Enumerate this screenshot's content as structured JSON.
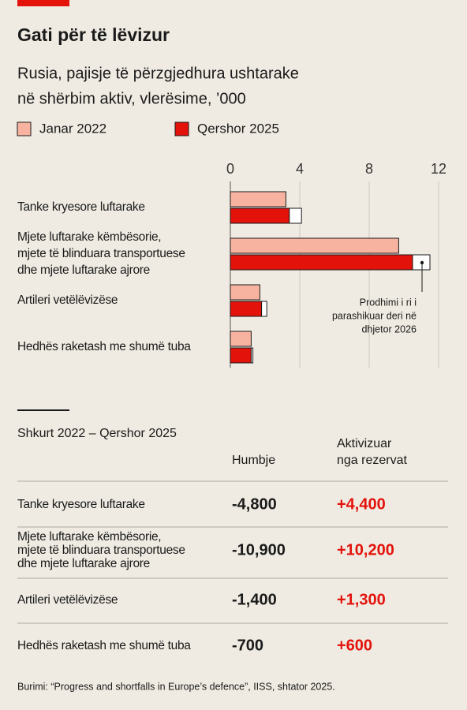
{
  "chart_data": {
    "type": "bar",
    "title": "Gati për të lëvizur",
    "subtitle": [
      "Rusia, pajisje të përzgjedhura ushtarake",
      "në shërbim aktiv, vlerësime, ’000"
    ],
    "categories": [
      [
        "Tanke kryesore luftarake"
      ],
      [
        "Mjete luftarake këmbësorie,",
        "mjete të blinduara transportuese",
        "dhe mjete luftarake ajrore"
      ],
      [
        "Artileri vetëlëvizëse"
      ],
      [
        "Hedhës raketash me shumë tuba"
      ]
    ],
    "series": [
      {
        "name": "Janar 2022",
        "color": "#f7b3a0",
        "values": [
          3.2,
          9.7,
          1.7,
          1.2
        ]
      },
      {
        "name": "Qershor 2025",
        "color": "#e3120b",
        "values": [
          3.4,
          10.5,
          1.8,
          1.2
        ]
      }
    ],
    "projected_values": [
      0.7,
      1.0,
      0.3,
      0.1
    ],
    "projected_color": "#ffffff",
    "annotation": [
      "Prodhimi i ri i",
      "parashikuar deri në",
      "dhjetor 2026"
    ],
    "xlim": [
      0,
      12
    ],
    "xticks": [
      0,
      4,
      8,
      12
    ],
    "grid": true
  },
  "table": {
    "subtitle": "Shkurt 2022 – Qershor 2025",
    "columns": [
      [
        "Humbje"
      ],
      [
        "Aktivizuar",
        "nga rezervat"
      ]
    ],
    "rows": [
      [
        [
          "Tanke kryesore luftarake"
        ],
        "-4,800",
        "+4,400"
      ],
      [
        [
          "Mjete luftarake këmbësorie,",
          "mjete të blinduara transportuese",
          "dhe mjete luftarake ajrore"
        ],
        "-10,900",
        "+10,200"
      ],
      [
        [
          "Artileri vetëlëvizëse"
        ],
        "-1,400",
        "+1,300"
      ],
      [
        [
          "Hedhës raketash me shumë tuba"
        ],
        "-700",
        "+600"
      ]
    ]
  },
  "source": "Burimi: “Progress and shortfalls in Europe’s defence”, IISS, shtator 2025."
}
